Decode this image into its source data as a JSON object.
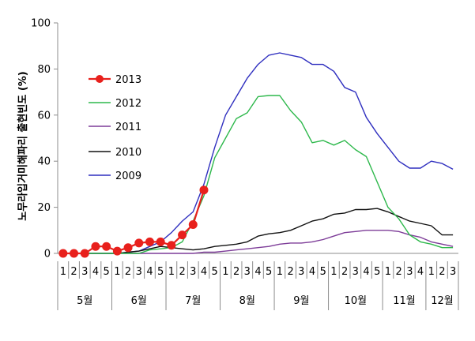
{
  "chart_data": {
    "type": "line",
    "ylabel": "노무라입거미해파리 출현빈도 (%)",
    "xlabel": "",
    "ylim": [
      0,
      100
    ],
    "yticks": [
      0,
      20,
      40,
      60,
      80,
      100
    ],
    "grid": false,
    "legend_position": "upper-left inside",
    "categories": [
      "1",
      "2",
      "3",
      "4",
      "5",
      "1",
      "2",
      "3",
      "4",
      "5",
      "1",
      "2",
      "3",
      "4",
      "5",
      "1",
      "2",
      "3",
      "4",
      "5",
      "1",
      "2",
      "3",
      "4",
      "5",
      "1",
      "2",
      "3",
      "4",
      "5",
      "1",
      "2",
      "3",
      "4",
      "1",
      "2",
      "3"
    ],
    "months": [
      {
        "label": "5월",
        "span": 5
      },
      {
        "label": "6월",
        "span": 5
      },
      {
        "label": "7월",
        "span": 5
      },
      {
        "label": "8월",
        "span": 5
      },
      {
        "label": "9월",
        "span": 5
      },
      {
        "label": "10월",
        "span": 5
      },
      {
        "label": "11월",
        "span": 4
      },
      {
        "label": "12월",
        "span": 3
      }
    ],
    "series": [
      {
        "name": "2013",
        "color": "#e8201c",
        "marker": "circle",
        "values": [
          0,
          0,
          0,
          3,
          3,
          1,
          2.5,
          4.5,
          5,
          5,
          3.5,
          8,
          12.5,
          27.5,
          null,
          null,
          null,
          null,
          null,
          null,
          null,
          null,
          null,
          null,
          null,
          null,
          null,
          null,
          null,
          null,
          null,
          null,
          null,
          null,
          null,
          null,
          null
        ]
      },
      {
        "name": "2012",
        "color": "#2db84b",
        "marker": "none",
        "values": [
          0,
          0,
          0,
          0,
          0,
          0,
          0,
          0,
          1.5,
          2,
          2.5,
          5,
          14,
          25,
          41.5,
          50,
          58.5,
          61,
          68,
          68.5,
          68.5,
          62,
          57,
          48,
          49,
          47,
          49,
          45,
          42,
          31,
          20,
          15,
          8,
          5,
          4,
          2.5,
          2.5
        ]
      },
      {
        "name": "2011",
        "color": "#7d3c98",
        "marker": "none",
        "values": [
          0,
          0,
          0,
          0,
          0,
          0,
          0,
          0,
          0,
          0,
          0,
          0,
          0,
          0.5,
          0.5,
          1,
          1.5,
          2,
          2.5,
          3,
          4,
          4.5,
          4.5,
          5,
          6,
          7.5,
          9,
          9.5,
          10,
          10,
          10,
          9.5,
          8,
          7,
          5,
          4,
          3
        ]
      },
      {
        "name": "2010",
        "color": "#111111",
        "marker": "none",
        "values": [
          0,
          0,
          0,
          0,
          0,
          0,
          0.5,
          1,
          2,
          3,
          2.5,
          2,
          1.5,
          2,
          3,
          3.5,
          4,
          5,
          7.5,
          8.5,
          9,
          10,
          12,
          14,
          15,
          17,
          17.5,
          19,
          19,
          19.5,
          18,
          16,
          14,
          13,
          12,
          8,
          8
        ]
      },
      {
        "name": "2009",
        "color": "#2f2fbf",
        "marker": "none",
        "values": [
          0,
          0,
          0,
          0,
          0,
          0,
          0.5,
          1,
          3,
          5,
          9,
          14,
          18,
          30,
          46,
          60,
          68,
          76,
          82,
          86,
          87,
          86,
          85,
          82,
          82,
          79,
          72,
          70,
          59,
          52,
          46,
          40,
          37,
          37,
          40,
          39,
          36.5
        ]
      }
    ]
  }
}
